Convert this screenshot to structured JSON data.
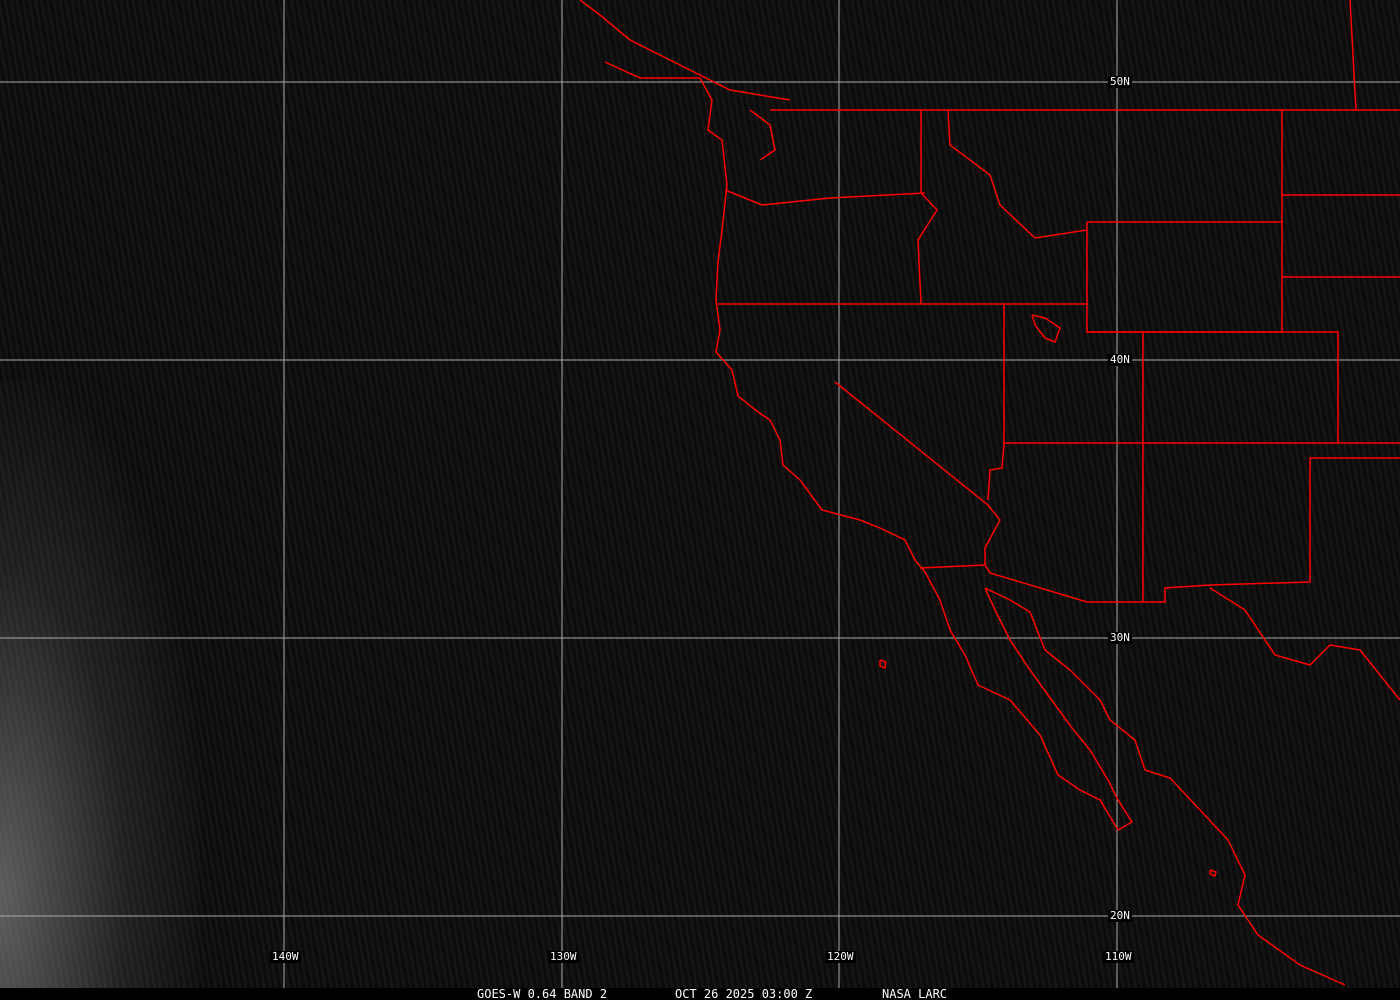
{
  "map": {
    "colors": {
      "border": "#ff0000",
      "grid": "#aaaaaa",
      "text": "#ffffff",
      "background": "#000000"
    },
    "longitude_labels": [
      "140W",
      "130W",
      "120W",
      "110W"
    ],
    "latitude_labels": [
      "50N",
      "40N",
      "30N",
      "20N"
    ]
  },
  "caption": {
    "product": "GOES-W 0.64 BAND 2",
    "datetime": "OCT 26 2025 03:00 Z",
    "source": "NASA LARC"
  }
}
